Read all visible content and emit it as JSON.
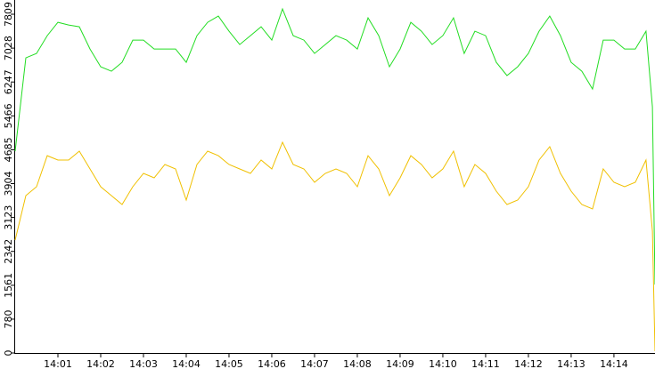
{
  "chart_data": {
    "type": "line",
    "x": [
      0,
      0.25,
      0.5,
      0.75,
      1,
      1.25,
      1.5,
      1.75,
      2,
      2.25,
      2.5,
      2.75,
      3,
      3.25,
      3.5,
      3.75,
      4,
      4.25,
      4.5,
      4.75,
      5,
      5.25,
      5.5,
      5.75,
      6,
      6.25,
      6.5,
      6.75,
      7,
      7.25,
      7.5,
      7.75,
      8,
      8.25,
      8.5,
      8.75,
      9,
      9.25,
      9.5,
      9.75,
      10,
      10.25,
      10.5,
      10.75,
      11,
      11.25,
      11.5,
      11.75,
      12,
      12.25,
      12.5,
      12.75,
      13,
      13.25,
      13.5,
      13.75,
      14,
      14.25,
      14.5,
      14.75,
      14.9,
      14.96
    ],
    "series": [
      {
        "color": "#22dd22",
        "values": [
          4650,
          6803,
          6906,
          7316,
          7623,
          7561,
          7520,
          7008,
          6598,
          6496,
          6701,
          7213,
          7213,
          7008,
          7008,
          7008,
          6701,
          7316,
          7623,
          7766,
          7418,
          7111,
          7316,
          7520,
          7213,
          7930,
          7316,
          7213,
          6906,
          7111,
          7316,
          7213,
          7008,
          7725,
          7316,
          6598,
          7008,
          7623,
          7418,
          7111,
          7316,
          7725,
          6906,
          7418,
          7316,
          6701,
          6394,
          6598,
          6906,
          7418,
          7766,
          7316,
          6701,
          6496,
          6086,
          7213,
          7213,
          7008,
          7008,
          7418,
          5676,
          1578
        ]
      },
      {
        "color": "#f0c000",
        "values": [
          2603,
          3627,
          3832,
          4549,
          4447,
          4447,
          4652,
          4242,
          3832,
          3627,
          3422,
          3832,
          4140,
          4037,
          4345,
          4242,
          3525,
          4345,
          4652,
          4549,
          4345,
          4242,
          4140,
          4447,
          4242,
          4857,
          4345,
          4242,
          3935,
          4140,
          4242,
          4140,
          3832,
          4549,
          4242,
          3627,
          4037,
          4549,
          4345,
          4037,
          4242,
          4652,
          3832,
          4345,
          4140,
          3730,
          3422,
          3525,
          3832,
          4447,
          4755,
          4140,
          3730,
          3422,
          3320,
          4242,
          3935,
          3832,
          3935,
          4447,
          2808,
          40
        ]
      }
    ],
    "xlim": [
      0,
      14.96
    ],
    "xticks": [
      {
        "value": 1,
        "label": "14:01"
      },
      {
        "value": 2,
        "label": "14:02"
      },
      {
        "value": 3,
        "label": "14:03"
      },
      {
        "value": 4,
        "label": "14:04"
      },
      {
        "value": 5,
        "label": "14:05"
      },
      {
        "value": 6,
        "label": "14:06"
      },
      {
        "value": 7,
        "label": "14:07"
      },
      {
        "value": 8,
        "label": "14:08"
      },
      {
        "value": 9,
        "label": "14:09"
      },
      {
        "value": 10,
        "label": "14:10"
      },
      {
        "value": 11,
        "label": "14:11"
      },
      {
        "value": 12,
        "label": "14:12"
      },
      {
        "value": 13,
        "label": "14:13"
      },
      {
        "value": 14,
        "label": "14:14"
      }
    ],
    "ylim": [
      0,
      8137
    ],
    "yticks": [
      0,
      780,
      1561,
      2342,
      3123,
      3904,
      4685,
      5466,
      6247,
      7028,
      7809
    ]
  }
}
